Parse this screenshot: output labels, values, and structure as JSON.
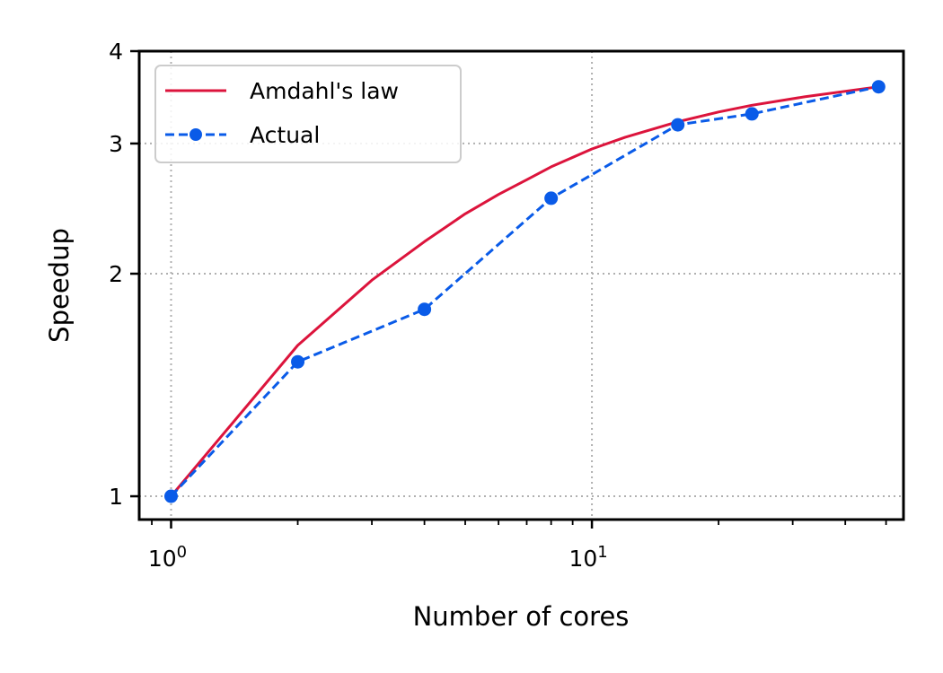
{
  "chart_data": {
    "type": "line",
    "title": "",
    "xlabel": "Number of cores",
    "ylabel": "Speedup",
    "x_scale": "log",
    "y_scale": "log",
    "xlim": [
      0.84,
      55
    ],
    "ylim": [
      0.93,
      4
    ],
    "x_ticks": [
      {
        "value": 1,
        "base": "10",
        "exp": "0"
      },
      {
        "value": 10,
        "base": "10",
        "exp": "1"
      }
    ],
    "y_ticks": [
      {
        "value": 1,
        "label": "1"
      },
      {
        "value": 2,
        "label": "2"
      },
      {
        "value": 3,
        "label": "3"
      },
      {
        "value": 4,
        "label": "4"
      }
    ],
    "grid": true,
    "legend_position": "top-left",
    "series": [
      {
        "name": "Amdahl's law",
        "color": "#dc143c",
        "style": "solid",
        "marker": "none",
        "x": [
          1,
          2,
          3,
          4,
          5,
          6,
          7,
          8,
          10,
          12,
          16,
          20,
          24,
          32,
          48
        ],
        "y": [
          1.0,
          1.6,
          1.96,
          2.21,
          2.41,
          2.56,
          2.68,
          2.79,
          2.95,
          3.06,
          3.21,
          3.31,
          3.38,
          3.47,
          3.58
        ]
      },
      {
        "name": "Actual",
        "color": "#0a5be8",
        "style": "dashed",
        "marker": "circle",
        "x": [
          1,
          2,
          4,
          8,
          16,
          24,
          48
        ],
        "y": [
          1.0,
          1.52,
          1.79,
          2.53,
          3.18,
          3.29,
          3.58
        ]
      }
    ]
  }
}
